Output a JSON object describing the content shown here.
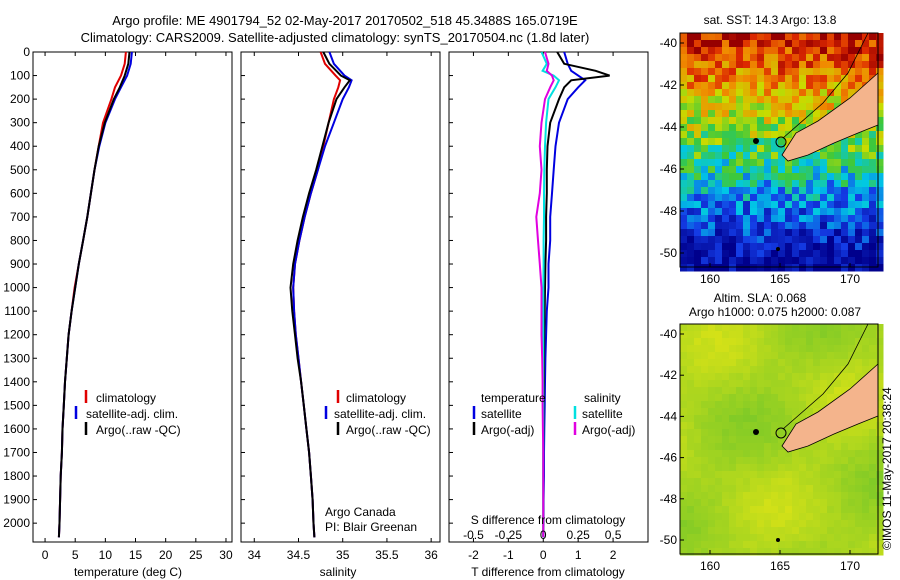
{
  "header": {
    "line1": "Argo profile: ME 4901794_52 02-May-2017 20170502_518 45.3488S 165.0719E",
    "line2": "Climatology: CARS2009. Satellite-adjusted climatology: synTS_20170504.nc (1.8d later)"
  },
  "credits": {
    "org": "Argo Canada",
    "pi": "PI: Blair Greenan",
    "timestamp": "©IMOS 11-May-2017 20:38:24"
  },
  "legend1": {
    "items": [
      "climatology",
      "satellite-adj. clim.",
      "Argo(..raw -QC)"
    ]
  },
  "legend3": {
    "temp_header": "temperature",
    "sal_header": "salinity",
    "items": [
      "satellite",
      "Argo(-adj)",
      "satellite",
      "Argo(-adj)"
    ]
  },
  "colors": {
    "climatology": "#e00000",
    "satellite": "#0000e0",
    "argo": "#000000",
    "sal_satellite": "#00e0e0",
    "sal_argo": "#e000e0",
    "land": "#f4b48c"
  },
  "chart_data": [
    {
      "type": "line",
      "xlabel": "temperature (deg C)",
      "ylabel": "",
      "xlim": [
        -2,
        31
      ],
      "ylim": [
        2080,
        0
      ],
      "xticks": [
        "0",
        "5",
        "10",
        "15",
        "20",
        "25",
        "30"
      ],
      "yticks": [
        "0",
        "100",
        "200",
        "300",
        "400",
        "500",
        "600",
        "700",
        "800",
        "900",
        "1000",
        "1100",
        "1200",
        "1300",
        "1400",
        "1500",
        "1600",
        "1700",
        "1800",
        "1900",
        "2000"
      ],
      "depth": [
        0,
        50,
        100,
        150,
        200,
        300,
        400,
        500,
        600,
        700,
        800,
        900,
        1000,
        1100,
        1200,
        1300,
        1400,
        1500,
        1600,
        1700,
        1800,
        1900,
        2000,
        2060
      ],
      "series": [
        {
          "name": "climatology",
          "values": [
            13.4,
            13.2,
            12.6,
            11.6,
            11.0,
            9.6,
            8.9,
            8.2,
            7.6,
            7.0,
            6.3,
            5.6,
            4.9,
            4.4,
            3.9,
            3.6,
            3.3,
            3.1,
            2.9,
            2.8,
            2.6,
            2.5,
            2.4,
            2.3
          ]
        },
        {
          "name": "satellite-adj. clim.",
          "values": [
            14.4,
            14.2,
            13.6,
            12.6,
            11.6,
            10.0,
            9.0,
            8.2,
            7.6,
            7.0,
            6.3,
            5.6,
            5.0,
            4.4,
            3.9,
            3.6,
            3.3,
            3.1,
            2.9,
            2.8,
            2.6,
            2.5,
            2.4,
            2.3
          ]
        },
        {
          "name": "Argo(..raw -QC)",
          "values": [
            14.0,
            13.8,
            13.2,
            12.4,
            11.4,
            9.9,
            8.9,
            8.2,
            7.6,
            7.0,
            6.3,
            5.6,
            5.0,
            4.4,
            3.9,
            3.6,
            3.3,
            3.1,
            2.9,
            2.8,
            2.6,
            2.5,
            2.4,
            2.3
          ]
        }
      ]
    },
    {
      "type": "line",
      "xlabel": "salinity",
      "ylabel": "",
      "xlim": [
        33.85,
        36.1
      ],
      "ylim": [
        2080,
        0
      ],
      "xticks": [
        "34",
        "34.5",
        "35",
        "35.5",
        "36"
      ],
      "depth": [
        0,
        50,
        100,
        120,
        150,
        200,
        300,
        400,
        500,
        600,
        700,
        800,
        900,
        1000,
        1100,
        1200,
        1300,
        1400,
        1500,
        1600,
        1700,
        1800,
        1900,
        2000,
        2060
      ],
      "series": [
        {
          "name": "climatology",
          "values": [
            34.75,
            34.8,
            34.92,
            34.97,
            34.95,
            34.9,
            34.84,
            34.78,
            34.72,
            34.64,
            34.57,
            34.51,
            34.46,
            34.44,
            34.45,
            34.47,
            34.5,
            34.53,
            34.56,
            34.59,
            34.62,
            34.64,
            34.66,
            34.67,
            34.68
          ]
        },
        {
          "name": "satellite-adj. clim.",
          "values": [
            34.85,
            34.9,
            35.02,
            35.1,
            35.07,
            35.0,
            34.9,
            34.8,
            34.72,
            34.64,
            34.57,
            34.51,
            34.46,
            34.44,
            34.45,
            34.47,
            34.5,
            34.53,
            34.56,
            34.59,
            34.62,
            34.64,
            34.66,
            34.67,
            34.68
          ]
        },
        {
          "name": "Argo(..raw -QC)",
          "values": [
            34.78,
            34.85,
            34.98,
            35.08,
            35.02,
            34.93,
            34.84,
            34.77,
            34.7,
            34.62,
            34.55,
            34.49,
            34.44,
            34.41,
            34.43,
            34.46,
            34.49,
            34.53,
            34.56,
            34.59,
            34.62,
            34.64,
            34.66,
            34.67,
            34.68
          ]
        }
      ]
    },
    {
      "type": "line",
      "xlabel": "T difference from climatology",
      "xlabel2": "S difference from climatology",
      "xlim": [
        -2.7,
        3.0
      ],
      "ylim": [
        2080,
        0
      ],
      "xticks": [
        "-2",
        "-1",
        "0",
        "1",
        "2"
      ],
      "xticks_top": [
        "-0.5",
        "-0.25",
        "0",
        "0.25",
        "0.5"
      ],
      "depth": [
        0,
        50,
        80,
        100,
        120,
        150,
        200,
        300,
        400,
        500,
        600,
        700,
        800,
        900,
        1000,
        1100,
        1200,
        1300,
        1400,
        1500,
        1600,
        1700,
        1800,
        1900,
        2000,
        2060
      ],
      "series": [
        {
          "name": "temperature satellite",
          "values": [
            0.6,
            0.7,
            0.8,
            1.0,
            1.2,
            1.0,
            0.7,
            0.45,
            0.35,
            0.3,
            0.25,
            0.2,
            0.2,
            0.15,
            0.15,
            0.1,
            0.08,
            0.06,
            0.05,
            0.04,
            0.03,
            0.02,
            0.02,
            0.01,
            0.01,
            0.0
          ]
        },
        {
          "name": "temperature Argo(-adj)",
          "values": [
            0.4,
            0.6,
            1.5,
            1.9,
            0.8,
            0.6,
            0.45,
            0.2,
            0.12,
            0.1,
            0.1,
            0.08,
            0.08,
            0.06,
            0.05,
            0.04,
            0.03,
            0.02,
            0.02,
            0.01,
            0.01,
            0.0,
            0.0,
            0.0,
            0.0,
            0.0
          ]
        },
        {
          "name": "salinity satellite",
          "values": [
            -0.05,
            0.1,
            -0.02,
            0.3,
            0.45,
            0.35,
            0.15,
            0.08,
            0.05,
            0.03,
            0.02,
            0.02,
            0.01,
            0.01,
            0.0,
            0.0,
            0.0,
            0.0,
            0.0,
            0.0,
            0.0,
            0.0,
            0.0,
            0.0,
            0.0,
            0.0
          ]
        },
        {
          "name": "salinity Argo(-adj)",
          "values": [
            0.05,
            0.15,
            0.1,
            0.25,
            0.3,
            0.2,
            0.05,
            -0.05,
            -0.1,
            -0.05,
            -0.1,
            -0.2,
            -0.15,
            -0.1,
            -0.05,
            -0.05,
            -0.05,
            -0.03,
            -0.02,
            -0.02,
            -0.01,
            0.0,
            0.0,
            0.0,
            0.0,
            0.0
          ]
        }
      ]
    }
  ],
  "map_top": {
    "title": "sat. SST: 14.3 Argo: 13.8",
    "yticks": [
      "-40",
      "-42",
      "-44",
      "-46",
      "-48",
      "-50"
    ],
    "xticks": [
      "160",
      "165",
      "170"
    ]
  },
  "map_bottom": {
    "title1": "Altim. SLA: 0.068",
    "title2": "Argo h1000: 0.075 h2000: 0.087",
    "yticks": [
      "-40",
      "-42",
      "-44",
      "-46",
      "-48",
      "-50"
    ],
    "xticks": [
      "160",
      "165",
      "170"
    ]
  }
}
